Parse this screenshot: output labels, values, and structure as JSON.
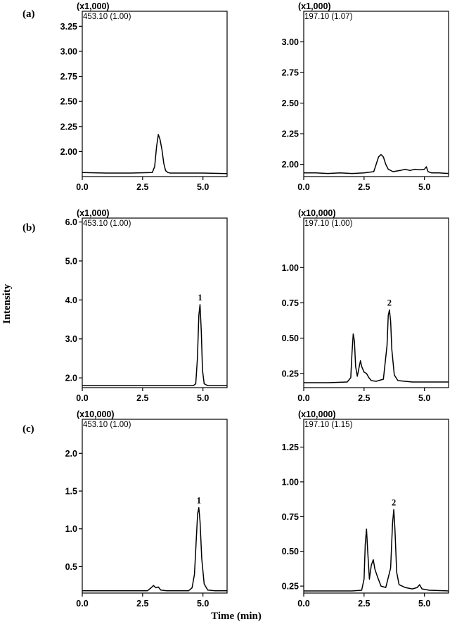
{
  "figure": {
    "ylabel": "Intensity",
    "xlabel": "Time (min)",
    "panel_labels": [
      "(a)",
      "(b)",
      "(c)"
    ]
  },
  "chart_data": [
    {
      "type": "line",
      "panel": "(a)",
      "scale": "(x1,000)",
      "ion": "453.10 (1.00)",
      "xlim": [
        0,
        6
      ],
      "ylim": [
        1.75,
        3.4
      ],
      "xticks": [
        0.0,
        2.5,
        5.0
      ],
      "xtick_labels": [
        "0.0",
        "2.5",
        "5.0"
      ],
      "yticks": [
        2.0,
        2.25,
        2.5,
        2.75,
        3.0,
        3.25
      ],
      "ytick_labels": [
        "2.00",
        "2.25",
        "2.50",
        "2.75",
        "3.00",
        "3.25"
      ],
      "x": [
        0.0,
        1.0,
        2.0,
        2.9,
        3.0,
        3.08,
        3.15,
        3.22,
        3.3,
        3.38,
        3.45,
        3.55,
        3.65,
        4.0,
        5.0,
        6.0
      ],
      "y": [
        1.79,
        1.785,
        1.785,
        1.79,
        1.85,
        2.05,
        2.17,
        2.12,
        2.02,
        1.88,
        1.81,
        1.79,
        1.785,
        1.785,
        1.785,
        1.78
      ],
      "peak_labels": []
    },
    {
      "type": "line",
      "panel": "(a)",
      "scale": "(x1,000)",
      "ion": "197.10 (1.07)",
      "xlim": [
        0,
        6
      ],
      "ylim": [
        1.9,
        3.25
      ],
      "xticks": [
        0.0,
        2.5,
        5.0
      ],
      "xtick_labels": [
        "0.0",
        "2.5",
        "5.0"
      ],
      "yticks": [
        2.0,
        2.25,
        2.5,
        2.75,
        3.0
      ],
      "ytick_labels": [
        "2.00",
        "2.25",
        "2.50",
        "2.75",
        "3.00"
      ],
      "x": [
        0.0,
        0.5,
        1.0,
        1.5,
        2.0,
        2.5,
        2.9,
        3.0,
        3.1,
        3.2,
        3.3,
        3.4,
        3.5,
        3.7,
        4.0,
        4.2,
        4.4,
        4.6,
        4.8,
        5.0,
        5.08,
        5.15,
        5.3,
        5.6,
        6.0
      ],
      "y": [
        1.93,
        1.93,
        1.925,
        1.93,
        1.925,
        1.93,
        1.94,
        2.0,
        2.06,
        2.08,
        2.06,
        2.0,
        1.96,
        1.94,
        1.95,
        1.96,
        1.95,
        1.96,
        1.955,
        1.96,
        1.98,
        1.94,
        1.93,
        1.93,
        1.925
      ],
      "peak_labels": []
    },
    {
      "type": "line",
      "panel": "(b)",
      "scale": "(x1,000)",
      "ion": "453.10 (1.00)",
      "xlim": [
        0,
        6
      ],
      "ylim": [
        1.75,
        6.1
      ],
      "xticks": [
        0.0,
        2.5,
        5.0
      ],
      "xtick_labels": [
        "0.0",
        "2.5",
        "5.0"
      ],
      "yticks": [
        2.0,
        3.0,
        4.0,
        5.0,
        6.0
      ],
      "ytick_labels": [
        "2.0",
        "3.0",
        "4.0",
        "5.0",
        "6.0"
      ],
      "x": [
        0.0,
        1.0,
        2.0,
        3.0,
        4.0,
        4.6,
        4.7,
        4.77,
        4.83,
        4.88,
        4.93,
        4.98,
        5.05,
        5.2,
        6.0
      ],
      "y": [
        1.8,
        1.8,
        1.8,
        1.8,
        1.8,
        1.8,
        1.85,
        2.5,
        3.6,
        3.88,
        3.2,
        2.2,
        1.85,
        1.8,
        1.8
      ],
      "peak_labels": [
        {
          "text": "1",
          "x": 4.88,
          "y": 3.88
        }
      ]
    },
    {
      "type": "line",
      "panel": "(b)",
      "scale": "(x10,000)",
      "ion": "197.10 (1.00)",
      "xlim": [
        0,
        6
      ],
      "ylim": [
        0.15,
        1.35
      ],
      "xticks": [
        0.0,
        2.5,
        5.0
      ],
      "xtick_labels": [
        "0.0",
        "2.5",
        "5.0"
      ],
      "yticks": [
        0.25,
        0.5,
        0.75,
        1.0
      ],
      "ytick_labels": [
        "0.25",
        "0.50",
        "0.75",
        "1.00"
      ],
      "x": [
        0.0,
        1.0,
        1.8,
        1.95,
        2.0,
        2.05,
        2.1,
        2.15,
        2.22,
        2.3,
        2.35,
        2.4,
        2.5,
        2.6,
        2.7,
        2.8,
        3.0,
        3.3,
        3.45,
        3.5,
        3.55,
        3.6,
        3.65,
        3.75,
        3.9,
        4.5,
        5.0,
        6.0
      ],
      "y": [
        0.185,
        0.185,
        0.19,
        0.22,
        0.4,
        0.53,
        0.48,
        0.3,
        0.23,
        0.3,
        0.34,
        0.3,
        0.26,
        0.25,
        0.22,
        0.2,
        0.195,
        0.21,
        0.45,
        0.66,
        0.7,
        0.62,
        0.42,
        0.24,
        0.2,
        0.19,
        0.19,
        0.19
      ],
      "peak_labels": [
        {
          "text": "2",
          "x": 3.55,
          "y": 0.7
        }
      ]
    },
    {
      "type": "line",
      "panel": "(c)",
      "scale": "(x10,000)",
      "ion": "453.10 (1.00)",
      "xlim": [
        0,
        6
      ],
      "ylim": [
        0.15,
        2.45
      ],
      "xticks": [
        0.0,
        2.5,
        5.0
      ],
      "xtick_labels": [
        "0.0",
        "2.5",
        "5.0"
      ],
      "yticks": [
        0.5,
        1.0,
        1.5,
        2.0
      ],
      "ytick_labels": [
        "0.5",
        "1.0",
        "1.5",
        "2.0"
      ],
      "x": [
        0.0,
        1.0,
        2.0,
        2.7,
        2.85,
        2.95,
        3.05,
        3.15,
        3.25,
        3.5,
        4.0,
        4.4,
        4.55,
        4.65,
        4.72,
        4.78,
        4.83,
        4.88,
        4.95,
        5.05,
        5.2,
        5.5,
        6.0
      ],
      "y": [
        0.18,
        0.18,
        0.18,
        0.18,
        0.22,
        0.25,
        0.22,
        0.23,
        0.19,
        0.18,
        0.18,
        0.18,
        0.22,
        0.4,
        0.85,
        1.2,
        1.28,
        1.1,
        0.6,
        0.27,
        0.19,
        0.18,
        0.18
      ],
      "peak_labels": [
        {
          "text": "1",
          "x": 4.83,
          "y": 1.28
        }
      ]
    },
    {
      "type": "line",
      "panel": "(c)",
      "scale": "(x10,000)",
      "ion": "197.10 (1.15)",
      "xlim": [
        0,
        6
      ],
      "ylim": [
        0.2,
        1.45
      ],
      "xticks": [
        0.0,
        2.5,
        5.0
      ],
      "xtick_labels": [
        "0.0",
        "2.5",
        "5.0"
      ],
      "yticks": [
        0.25,
        0.5,
        0.75,
        1.0,
        1.25
      ],
      "ytick_labels": [
        "0.25",
        "0.50",
        "0.75",
        "1.00",
        "1.25"
      ],
      "x": [
        0.0,
        1.0,
        2.0,
        2.4,
        2.5,
        2.55,
        2.6,
        2.65,
        2.72,
        2.8,
        2.88,
        2.95,
        3.05,
        3.2,
        3.4,
        3.6,
        3.68,
        3.73,
        3.78,
        3.85,
        3.95,
        4.2,
        4.5,
        4.7,
        4.8,
        4.9,
        5.2,
        6.0
      ],
      "y": [
        0.215,
        0.215,
        0.215,
        0.22,
        0.3,
        0.55,
        0.66,
        0.5,
        0.3,
        0.4,
        0.44,
        0.37,
        0.32,
        0.25,
        0.24,
        0.38,
        0.7,
        0.8,
        0.65,
        0.35,
        0.26,
        0.24,
        0.23,
        0.24,
        0.26,
        0.23,
        0.22,
        0.215
      ],
      "peak_labels": [
        {
          "text": "2",
          "x": 3.73,
          "y": 0.8
        }
      ]
    }
  ]
}
